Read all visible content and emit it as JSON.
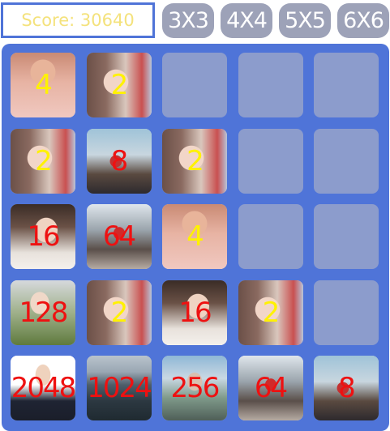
{
  "score_label": "Score: 30640",
  "sizes": [
    "3X3",
    "4X4",
    "5X5",
    "6X6"
  ],
  "colors": {
    "board": "#4f74d8",
    "empty_cell": "#8c9ccc",
    "size_button": "#9da2b8",
    "score_text": "#f4e27c",
    "yellow_number": "#fff200",
    "red_number": "#ee1111"
  },
  "grid": [
    [
      {
        "value": "4",
        "color": "yellow",
        "photo": "girl-sunglasses-photo"
      },
      {
        "value": "2",
        "color": "yellow",
        "photo": "girl-portrait-photo"
      },
      null,
      null,
      null
    ],
    [
      {
        "value": "2",
        "color": "yellow",
        "photo": "girl-portrait-photo"
      },
      {
        "value": "8",
        "color": "red",
        "photo": "girl-beach-photo"
      },
      {
        "value": "2",
        "color": "yellow",
        "photo": "girl-portrait-photo"
      },
      null,
      null
    ],
    [
      {
        "value": "16",
        "color": "red",
        "photo": "girl-thinking-photo"
      },
      {
        "value": "64",
        "color": "red",
        "photo": "girl-balcony-photo"
      },
      {
        "value": "4",
        "color": "yellow",
        "photo": "girl-sunglasses-photo"
      },
      null,
      null
    ],
    [
      {
        "value": "128",
        "color": "red",
        "photo": "girl-flowers-photo"
      },
      {
        "value": "2",
        "color": "yellow",
        "photo": "girl-portrait-photo"
      },
      {
        "value": "16",
        "color": "red",
        "photo": "girl-thinking-photo"
      },
      {
        "value": "2",
        "color": "yellow",
        "photo": "girl-portrait-photo"
      },
      null
    ],
    [
      {
        "value": "2048",
        "color": "red",
        "photo": "boy-suit-photo"
      },
      {
        "value": "1024",
        "color": "red",
        "photo": "sea-rocks-photo"
      },
      {
        "value": "256",
        "color": "red",
        "photo": "girl-scenery-photo"
      },
      {
        "value": "64",
        "color": "red",
        "photo": "girl-balcony-photo"
      },
      {
        "value": "8",
        "color": "red",
        "photo": "girl-beach-photo"
      }
    ]
  ]
}
